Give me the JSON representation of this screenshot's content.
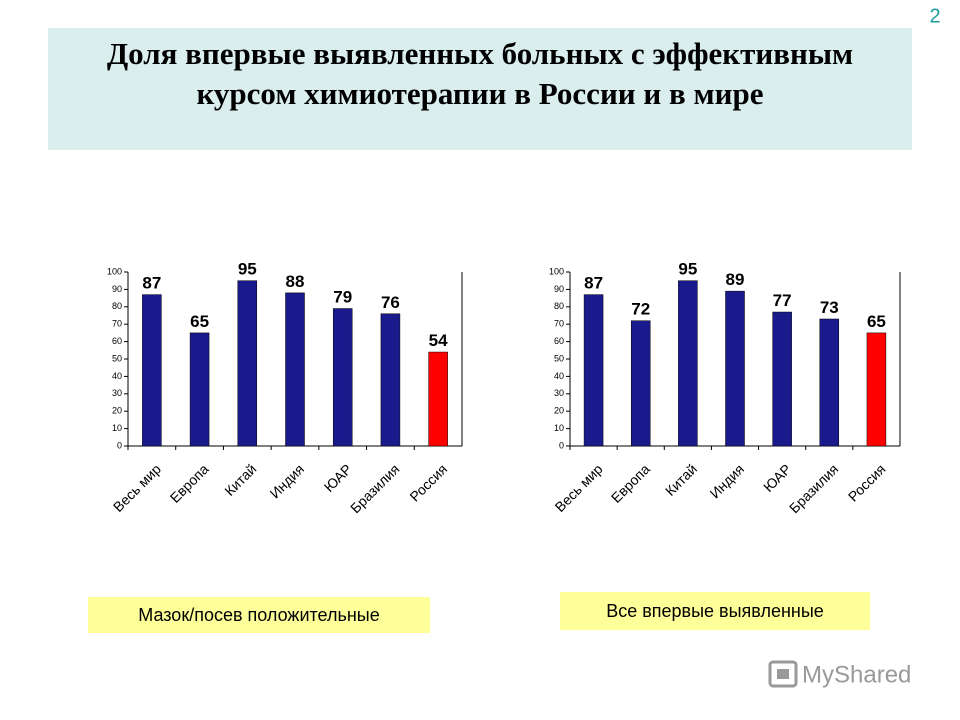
{
  "slide_number": "2",
  "title": "Доля впервые выявленных больных с эффективным курсом химиотерапии в России и в мире",
  "watermark": "MyShared",
  "chart_data": [
    {
      "type": "bar",
      "caption": "Мазок/посев положительные",
      "categories": [
        "Весь мир",
        "Европа",
        "Китай",
        "Индия",
        "ЮАР",
        "Бразилия",
        "Россия"
      ],
      "values": [
        87,
        65,
        95,
        88,
        79,
        76,
        54
      ],
      "colors": [
        "#1a1a8c",
        "#1a1a8c",
        "#1a1a8c",
        "#1a1a8c",
        "#1a1a8c",
        "#1a1a8c",
        "#ff0000"
      ],
      "ylim": [
        0,
        100
      ],
      "yticks": [
        0,
        10,
        20,
        30,
        40,
        50,
        60,
        70,
        80,
        90,
        100
      ]
    },
    {
      "type": "bar",
      "caption": "Все впервые выявленные",
      "categories": [
        "Весь мир",
        "Европа",
        "Китай",
        "Индия",
        "ЮАР",
        "Бразилия",
        "Россия"
      ],
      "values": [
        87,
        72,
        95,
        89,
        77,
        73,
        65
      ],
      "colors": [
        "#1a1a8c",
        "#1a1a8c",
        "#1a1a8c",
        "#1a1a8c",
        "#1a1a8c",
        "#1a1a8c",
        "#ff0000"
      ],
      "ylim": [
        0,
        100
      ],
      "yticks": [
        0,
        10,
        20,
        30,
        40,
        50,
        60,
        70,
        80,
        90,
        100
      ]
    }
  ]
}
